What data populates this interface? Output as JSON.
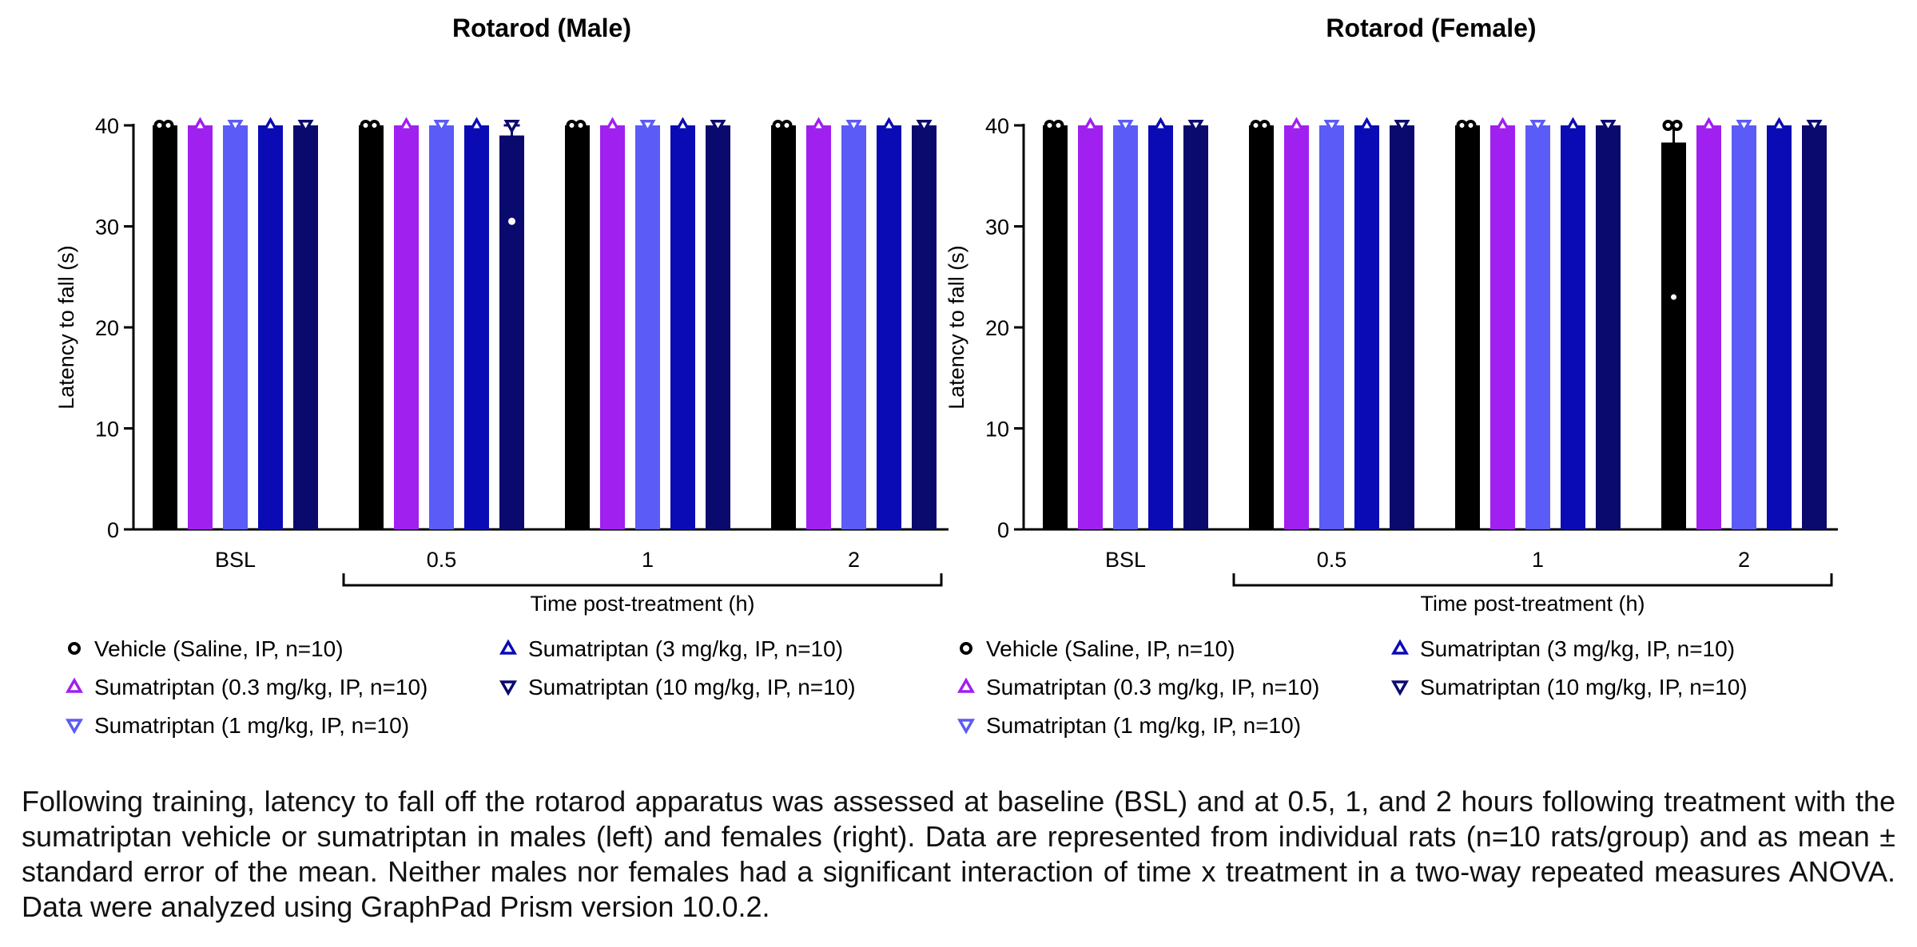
{
  "chart_data": [
    {
      "type": "bar",
      "title": "Rotarod (Male)",
      "ylabel": "Latency to fall (s)",
      "xlabel": "Time post-treatment (h)",
      "ylim": [
        0,
        40
      ],
      "yticks": [
        0,
        10,
        20,
        30,
        40
      ],
      "categories": [
        "BSL",
        "0.5",
        "1",
        "2"
      ],
      "series": [
        {
          "name": "Vehicle (Saline, IP, n=10)",
          "color": "#000000",
          "marker": "circle",
          "values": [
            40,
            40,
            40,
            40
          ],
          "sem": [
            0,
            0,
            0,
            0
          ],
          "outliers": [
            [],
            [],
            [],
            []
          ]
        },
        {
          "name": "Sumatriptan (0.3 mg/kg, IP, n=10)",
          "color": "#A020F0",
          "marker": "triangle-up",
          "values": [
            40,
            40,
            40,
            40
          ],
          "sem": [
            0,
            0,
            0,
            0
          ],
          "outliers": [
            [],
            [],
            [],
            []
          ]
        },
        {
          "name": "Sumatriptan (1 mg/kg, IP, n=10)",
          "color": "#5B5BF7",
          "marker": "triangle-down",
          "values": [
            40,
            40,
            40,
            40
          ],
          "sem": [
            0,
            0,
            0,
            0
          ],
          "outliers": [
            [],
            [],
            [],
            []
          ]
        },
        {
          "name": "Sumatriptan (3 mg/kg, IP, n=10)",
          "color": "#0B0BB5",
          "marker": "triangle-up",
          "values": [
            40,
            40,
            40,
            40
          ],
          "sem": [
            0,
            0,
            0,
            0
          ],
          "outliers": [
            [],
            [],
            [],
            []
          ]
        },
        {
          "name": "Sumatriptan (10 mg/kg, IP, n=10)",
          "color": "#0A0A6E",
          "marker": "triangle-down",
          "values": [
            40,
            39,
            40,
            40
          ],
          "sem": [
            0,
            1,
            0,
            0
          ],
          "outliers": [
            [],
            [
              30.5
            ],
            [],
            []
          ]
        }
      ]
    },
    {
      "type": "bar",
      "title": "Rotarod (Female)",
      "ylabel": "Latency to fall (s)",
      "xlabel": "Time post-treatment (h)",
      "ylim": [
        0,
        40
      ],
      "yticks": [
        0,
        10,
        20,
        30,
        40
      ],
      "categories": [
        "BSL",
        "0.5",
        "1",
        "2"
      ],
      "series": [
        {
          "name": "Vehicle (Saline, IP, n=10)",
          "color": "#000000",
          "marker": "circle",
          "values": [
            40,
            40,
            40,
            38.3
          ],
          "sem": [
            0,
            0,
            0,
            1.7
          ],
          "outliers": [
            [],
            [],
            [],
            [
              23
            ]
          ]
        },
        {
          "name": "Sumatriptan (0.3 mg/kg, IP, n=10)",
          "color": "#A020F0",
          "marker": "triangle-up",
          "values": [
            40,
            40,
            40,
            40
          ],
          "sem": [
            0,
            0,
            0,
            0
          ],
          "outliers": [
            [],
            [],
            [],
            []
          ]
        },
        {
          "name": "Sumatriptan (1 mg/kg, IP, n=10)",
          "color": "#5B5BF7",
          "marker": "triangle-down",
          "values": [
            40,
            40,
            40,
            40
          ],
          "sem": [
            0,
            0,
            0,
            0
          ],
          "outliers": [
            [],
            [],
            [],
            []
          ]
        },
        {
          "name": "Sumatriptan (3 mg/kg, IP, n=10)",
          "color": "#0B0BB5",
          "marker": "triangle-up",
          "values": [
            40,
            40,
            40,
            40
          ],
          "sem": [
            0,
            0,
            0,
            0
          ],
          "outliers": [
            [],
            [],
            [],
            []
          ]
        },
        {
          "name": "Sumatriptan (10 mg/kg, IP, n=10)",
          "color": "#0A0A6E",
          "marker": "triangle-down",
          "values": [
            40,
            40,
            40,
            40
          ],
          "sem": [
            0,
            0,
            0,
            0
          ],
          "outliers": [
            [],
            [],
            [],
            []
          ]
        }
      ]
    }
  ],
  "caption": "Following training, latency to fall off the rotarod apparatus was assessed at baseline (BSL) and at 0.5, 1, and 2 hours following treatment with the sumatriptan vehicle or sumatriptan in males (left) and females (right). Data are represented from individual rats (n=10 rats/group) and as mean ± standard error of the mean. Neither males nor females had a significant interaction of time x treatment in a two-way repeated measures ANOVA. Data were analyzed using GraphPad Prism version 10.0.2."
}
